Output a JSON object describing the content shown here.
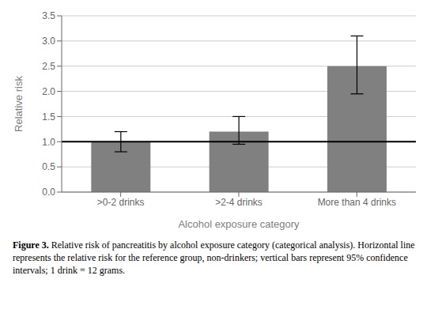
{
  "chart_data": {
    "type": "bar",
    "categories": [
      ">0-2 drinks",
      ">2-4 drinks",
      "More than 4 drinks"
    ],
    "values": [
      1.0,
      1.2,
      2.5
    ],
    "error_lower": [
      0.2,
      0.25,
      0.55
    ],
    "error_upper": [
      0.2,
      0.3,
      0.6
    ],
    "color": "#808080",
    "reference_line": {
      "y": 1.0,
      "color": "#000000"
    },
    "xlabel": "Alcohol exposure category",
    "ylabel": "Relative risk",
    "ylim": [
      0.0,
      3.5
    ],
    "yticks": [
      {
        "value": 0.0,
        "label": "0.0"
      },
      0.5,
      {
        "value": 1.0,
        "label": "1.0"
      },
      1.5,
      {
        "value": 2.0,
        "label": "2.0"
      },
      2.5,
      {
        "value": 3.0,
        "label": "3.0"
      },
      3.5
    ],
    "grid": true,
    "annotations": [
      "Figure 3.",
      "Relative risk of pancreatitis by alcohol exposure category (categorical analysis). Horizontal line represents the relative risk for the reference group, non-drinkers; vertical bars represent 95% confidence intervals; 1 drink = 12 grams."
    ]
  }
}
